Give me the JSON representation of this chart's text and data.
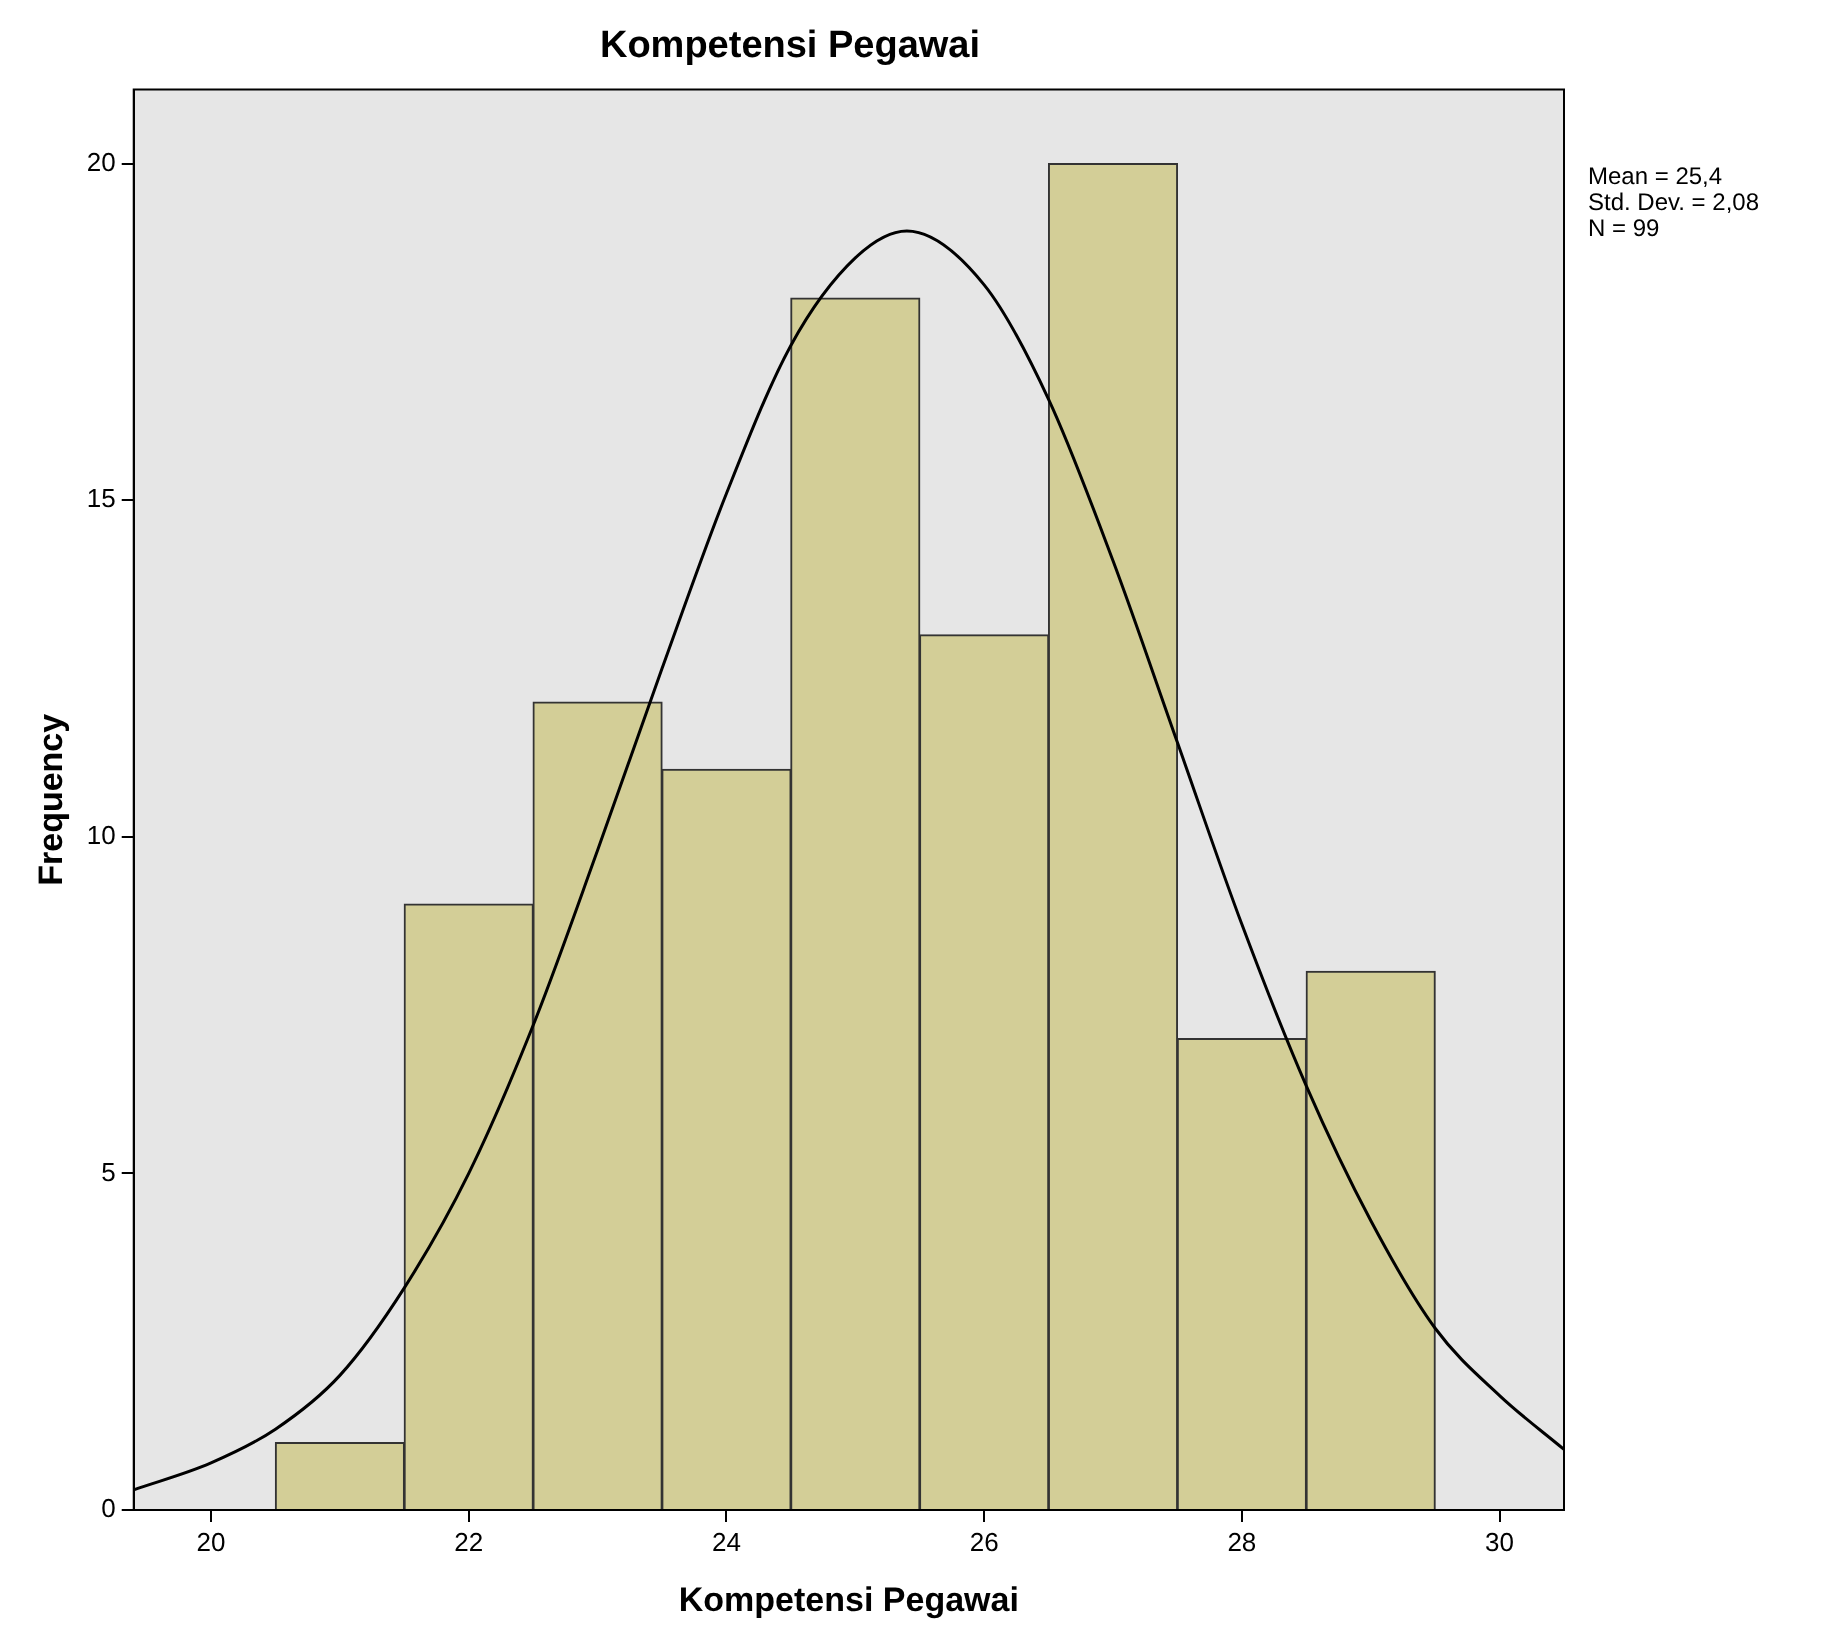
{
  "chart_data": {
    "type": "histogram",
    "title": "Kompetensi Pegawai",
    "xlabel": "Kompetensi Pegawai",
    "ylabel": "Frequency",
    "bins": [
      20.5,
      21.5,
      22.5,
      23.5,
      24.5,
      25.5,
      26.5,
      27.5,
      28.5,
      29.5
    ],
    "values": [
      1,
      9,
      12,
      11,
      18,
      13,
      20,
      7,
      8
    ],
    "color": "#d3ce97",
    "series": [
      {
        "type": "line",
        "color": "#000000",
        "x": [
          19.4,
          20,
          20.5,
          21,
          21.5,
          22,
          22.5,
          23,
          23.5,
          24,
          24.5,
          25,
          25.4,
          26,
          26.5,
          27,
          27.5,
          28,
          28.5,
          29,
          29.5,
          30,
          30.5
        ],
        "values": [
          0.3,
          0.7,
          1.2,
          2.0,
          3.3,
          5.0,
          7.2,
          9.8,
          12.5,
          15.1,
          17.3,
          18.6,
          19.0,
          18.2,
          16.5,
          14.1,
          11.4,
          8.7,
          6.3,
          4.3,
          2.7,
          1.7,
          0.9
        ]
      }
    ],
    "xlim": [
      19.4,
      30.5
    ],
    "xticks": [
      20,
      22,
      24,
      26,
      28,
      30
    ],
    "ylim": [
      0,
      21.1
    ],
    "yticks": [
      0,
      5,
      10,
      15,
      20
    ],
    "annotations": [
      "Mean = 25,4",
      "Std. Dev. = 2,08",
      "N = 99"
    ],
    "grid": false,
    "legend": false
  }
}
